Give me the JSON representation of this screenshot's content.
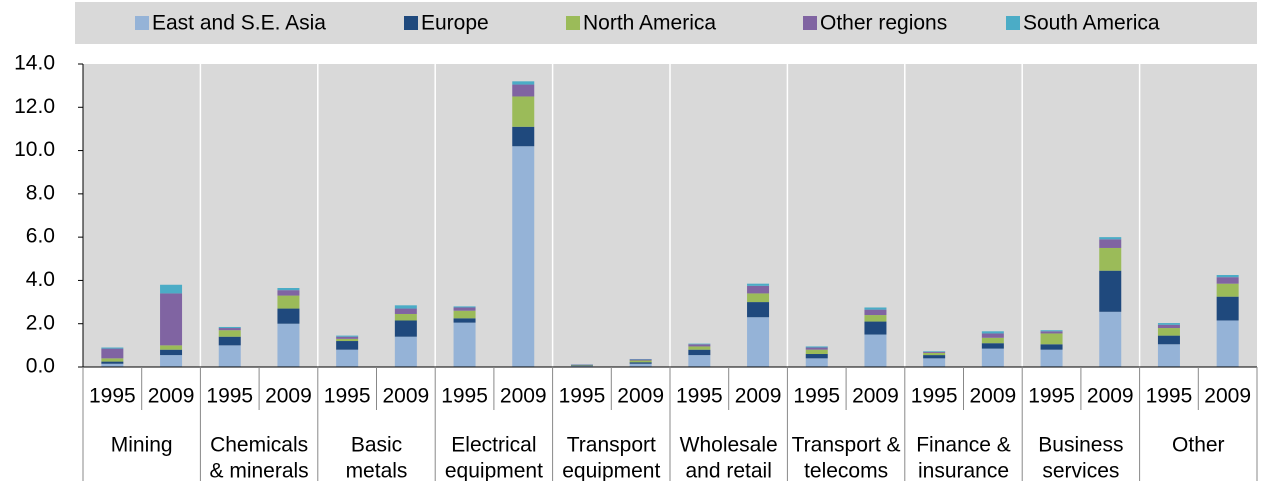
{
  "chart_data": {
    "type": "stacked_bar",
    "categories": [
      "1995",
      "2009",
      "1995",
      "2009",
      "1995",
      "2009",
      "1995",
      "2009",
      "1995",
      "2009",
      "1995",
      "2009",
      "1995",
      "2009",
      "1995",
      "2009",
      "1995",
      "2009",
      "1995",
      "2009"
    ],
    "groups": [
      [
        "Mining"
      ],
      [
        "Chemicals",
        "& minerals"
      ],
      [
        "Basic",
        "metals"
      ],
      [
        "Electrical",
        "equipment"
      ],
      [
        "Transport",
        "equipment"
      ],
      [
        "Wholesale",
        "and retail"
      ],
      [
        "Transport &",
        "telecoms"
      ],
      [
        "Finance &",
        "insurance"
      ],
      [
        "Business",
        "services"
      ],
      [
        "Other"
      ]
    ],
    "series": [
      {
        "name": "East and S.E. Asia",
        "color": "#95b3d7",
        "values": [
          0.15,
          0.55,
          1.0,
          2.0,
          0.8,
          1.4,
          2.05,
          10.2,
          0.05,
          0.15,
          0.55,
          2.3,
          0.4,
          1.5,
          0.4,
          0.85,
          0.8,
          2.55,
          1.05,
          2.15
        ]
      },
      {
        "name": "Europe",
        "color": "#1f497d",
        "values": [
          0.1,
          0.25,
          0.4,
          0.7,
          0.4,
          0.75,
          0.2,
          0.9,
          0.02,
          0.07,
          0.25,
          0.7,
          0.2,
          0.6,
          0.15,
          0.25,
          0.25,
          1.9,
          0.4,
          1.1
        ]
      },
      {
        "name": "North America",
        "color": "#9bbb59",
        "values": [
          0.15,
          0.2,
          0.3,
          0.6,
          0.1,
          0.3,
          0.35,
          1.4,
          0.02,
          0.08,
          0.15,
          0.4,
          0.2,
          0.3,
          0.1,
          0.25,
          0.5,
          1.05,
          0.35,
          0.6
        ]
      },
      {
        "name": "Other regions",
        "color": "#8064a2",
        "values": [
          0.45,
          2.4,
          0.1,
          0.25,
          0.1,
          0.25,
          0.15,
          0.55,
          0.02,
          0.05,
          0.1,
          0.35,
          0.1,
          0.25,
          0.05,
          0.2,
          0.1,
          0.4,
          0.15,
          0.3
        ]
      },
      {
        "name": "South America",
        "color": "#4bacc6",
        "values": [
          0.05,
          0.4,
          0.05,
          0.1,
          0.05,
          0.15,
          0.05,
          0.15,
          0.01,
          0.02,
          0.03,
          0.1,
          0.05,
          0.1,
          0.03,
          0.1,
          0.05,
          0.1,
          0.08,
          0.1
        ]
      }
    ],
    "ylim": [
      0,
      14
    ],
    "yticks": [
      {
        "value": 0,
        "label": "0.0"
      },
      {
        "value": 2,
        "label": "2.0"
      },
      {
        "value": 4,
        "label": "4.0"
      },
      {
        "value": 6,
        "label": "6.0"
      },
      {
        "value": 8,
        "label": "8.0"
      },
      {
        "value": 10,
        "label": "10.0"
      },
      {
        "value": 12,
        "label": "12.0"
      },
      {
        "value": 14,
        "label": "14.0"
      }
    ],
    "grid": false,
    "legend": "top"
  }
}
